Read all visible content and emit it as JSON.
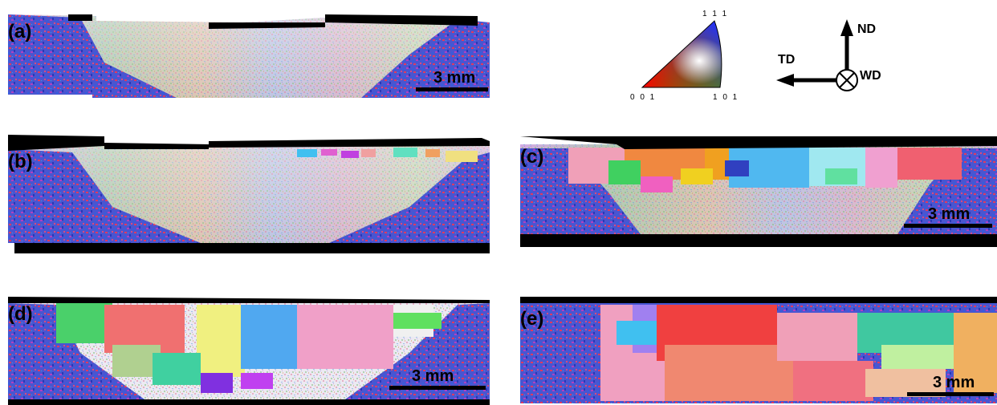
{
  "panels": [
    {
      "id": "a",
      "label": "(a)",
      "scale_label": "3 mm"
    },
    {
      "id": "b",
      "label": "(b)"
    },
    {
      "id": "c",
      "label": "(c)",
      "scale_label": "3 mm"
    },
    {
      "id": "d",
      "label": "(d)",
      "scale_label": "3 mm"
    },
    {
      "id": "e",
      "label": "(e)",
      "scale_label": "3 mm"
    }
  ],
  "ipf_legend": {
    "corner_111": "1 1 1",
    "corner_001": "0 0 1",
    "corner_101": "1 0 1"
  },
  "axes_legend": {
    "nd": "ND",
    "td": "TD",
    "wd": "WD"
  },
  "colors": {
    "base_metal_blue": "#3b4bd0",
    "base_metal_red": "#e0305a",
    "frame": "#000000"
  }
}
